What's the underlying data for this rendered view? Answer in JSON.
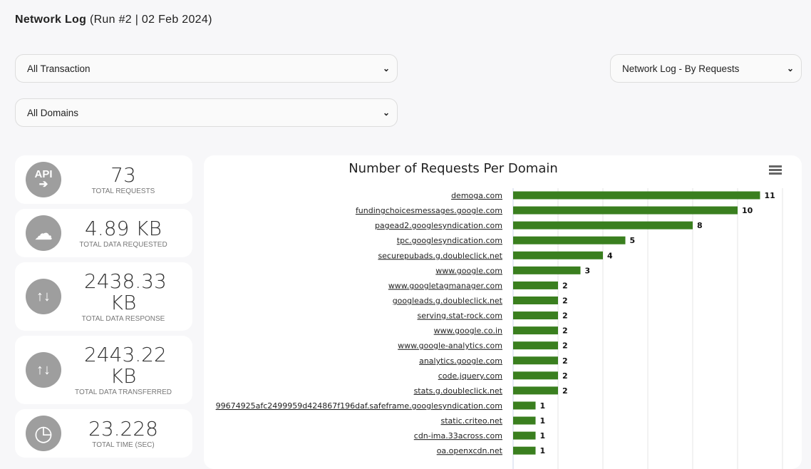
{
  "header": {
    "title": "Network Log",
    "subtitle": "(Run #2 | 02 Feb 2024)"
  },
  "filters": {
    "transaction": "All Transaction",
    "domains": "All Domains",
    "view": "Network Log - By Requests"
  },
  "stats": [
    {
      "icon": "api-icon",
      "value": "73",
      "label": "TOTAL REQUESTS"
    },
    {
      "icon": "cloud-upload-icon",
      "value": "4.89 KB",
      "label": "TOTAL DATA REQUESTED"
    },
    {
      "icon": "transfer-icon",
      "value": "2438.33 KB",
      "label": "TOTAL DATA RESPONSE"
    },
    {
      "icon": "transfer-icon",
      "value": "2443.22 KB",
      "label": "TOTAL DATA TRANSFERRED"
    },
    {
      "icon": "clock-icon",
      "value": "23.228",
      "label": "TOTAL TIME (SEC)"
    }
  ],
  "chart_data": {
    "type": "bar",
    "orientation": "horizontal",
    "title": "Number of Requests Per Domain",
    "xlim": [
      0,
      12
    ],
    "grid": true,
    "color": "#3a7f1f",
    "categories": [
      "demoga.com",
      "fundingchoicesmessages.google.com",
      "pagead2.googlesyndication.com",
      "tpc.googlesyndication.com",
      "securepubads.g.doubleclick.net",
      "www.google.com",
      "www.googletagmanager.com",
      "googleads.g.doubleclick.net",
      "serving.stat-rock.com",
      "www.google.co.in",
      "www.google-analytics.com",
      "analytics.google.com",
      "code.jquery.com",
      "stats.g.doubleclick.net",
      "99674925afc2499959d424867f196daf.safeframe.googlesyndication.com",
      "static.criteo.net",
      "cdn-ima.33across.com",
      "oa.openxcdn.net"
    ],
    "values": [
      11,
      10,
      8,
      5,
      4,
      3,
      2,
      2,
      2,
      2,
      2,
      2,
      2,
      2,
      1,
      1,
      1,
      1
    ]
  }
}
